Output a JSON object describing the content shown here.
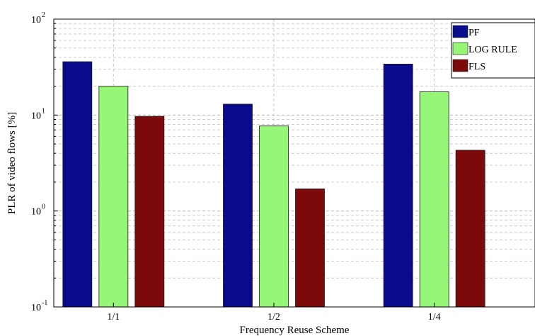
{
  "chart_data": {
    "type": "bar",
    "yscale": "log",
    "ylim": [
      0.1,
      100
    ],
    "categories": [
      "1/1",
      "1/2",
      "1/4"
    ],
    "xlabel": "Frequency Reuse Scheme",
    "ylabel": "PLR of video flows [%]",
    "ytick_labels": [
      {
        "base": "10",
        "exp": "-1"
      },
      {
        "base": "10",
        "exp": "0"
      },
      {
        "base": "10",
        "exp": "1"
      },
      {
        "base": "10",
        "exp": "2"
      }
    ],
    "grid": true,
    "legend": "top-right",
    "series": [
      {
        "name": "PF",
        "color": "#0a0a8c",
        "values": [
          36,
          13,
          34
        ]
      },
      {
        "name": "LOG RULE",
        "color": "#96f678",
        "values": [
          20,
          7.7,
          17.5
        ]
      },
      {
        "name": "FLS",
        "color": "#7d0a0a",
        "values": [
          9.7,
          1.7,
          4.3
        ]
      }
    ]
  }
}
